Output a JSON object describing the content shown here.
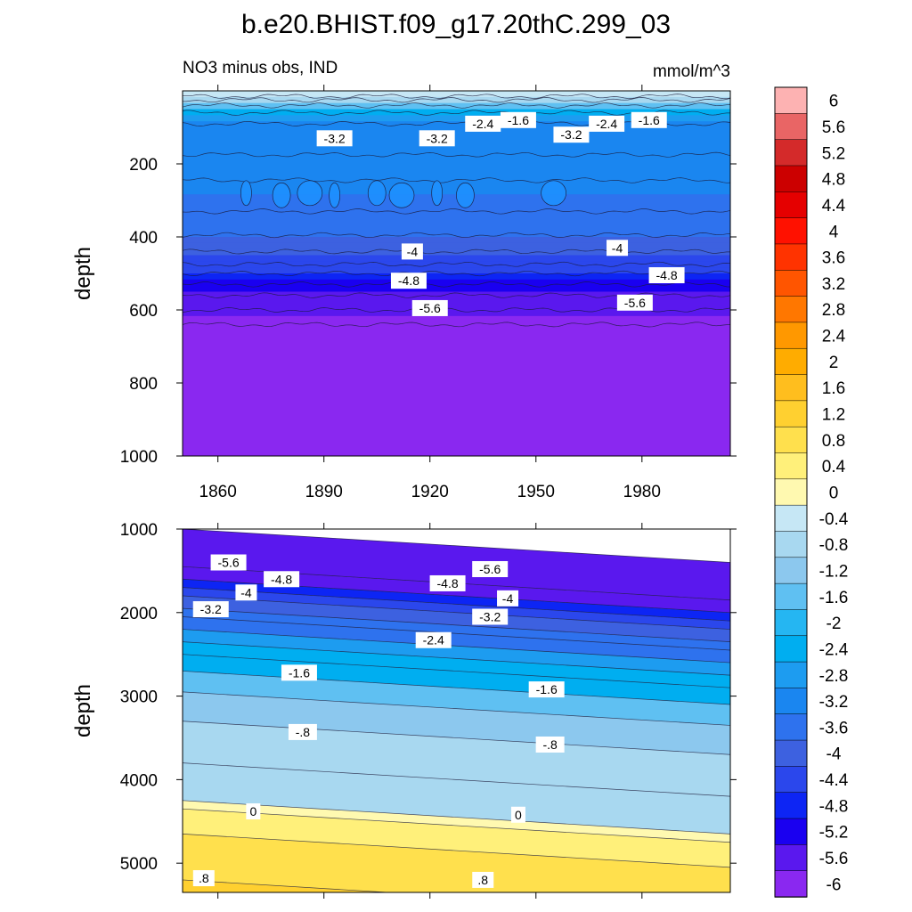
{
  "title": "b.e20.BHIST.f09_g17.20thC.299_03",
  "subtitle_left": "NO3 minus obs, IND",
  "subtitle_right": "mmol/m^3",
  "colorbar": {
    "levels": [
      "6",
      "5.6",
      "5.2",
      "4.8",
      "4.4",
      "4",
      "3.6",
      "3.2",
      "2.8",
      "2.4",
      "2",
      "1.6",
      "1.2",
      "0.8",
      "0.4",
      "0",
      "-0.4",
      "-0.8",
      "-1.2",
      "-1.6",
      "-2",
      "-2.4",
      "-2.8",
      "-3.2",
      "-3.6",
      "-4",
      "-4.4",
      "-4.8",
      "-5.2",
      "-5.6",
      "-6"
    ],
    "colors": [
      "#fdb2b2",
      "#e96565",
      "#d42a2a",
      "#cc0000",
      "#e50000",
      "#ff1100",
      "#ff3300",
      "#ff5500",
      "#ff7700",
      "#ff9800",
      "#ffac00",
      "#ffbe1e",
      "#ffd030",
      "#ffe04d",
      "#fff07a",
      "#fff9b0",
      "#c6e7f5",
      "#a8d8f0",
      "#8cc8ee",
      "#5fc0f2",
      "#25b6f2",
      "#00aef0",
      "#1d9cf0",
      "#1a86f0",
      "#2e72ee",
      "#3d61e0",
      "#2b47ec",
      "#0d25f4",
      "#1a00f0",
      "#5a18ee",
      "#8a28f0"
    ]
  },
  "chart_data": [
    {
      "type": "heatmap",
      "subtype": "filled contour",
      "panel": "upper",
      "xlabel": "",
      "ylabel": "depth",
      "x_ticks": [
        "1860",
        "1890",
        "1920",
        "1950",
        "1980"
      ],
      "x_range": [
        1850,
        2005
      ],
      "y_ticks": [
        "200",
        "400",
        "600",
        "800",
        "1000"
      ],
      "y_range": [
        1000,
        0
      ],
      "y_inverted": true,
      "levels_by_depth": [
        {
          "depth": 5,
          "value": -0.4
        },
        {
          "depth": 25,
          "value": -0.8
        },
        {
          "depth": 40,
          "value": -1.6
        },
        {
          "depth": 60,
          "value": -2.4
        },
        {
          "depth": 90,
          "value": -3.2
        },
        {
          "depth": 200,
          "value": -3.2
        },
        {
          "depth": 280,
          "value": -3.4
        },
        {
          "depth": 360,
          "value": -3.6
        },
        {
          "depth": 430,
          "value": -4.0
        },
        {
          "depth": 480,
          "value": -4.4
        },
        {
          "depth": 530,
          "value": -5.2
        },
        {
          "depth": 580,
          "value": -5.6
        },
        {
          "depth": 640,
          "value": -6.0
        },
        {
          "depth": 1000,
          "value": -6.0
        }
      ],
      "contour_labels": [
        {
          "text": "-3.2",
          "x": 1893,
          "y": 130
        },
        {
          "text": "-3.2",
          "x": 1922,
          "y": 130
        },
        {
          "text": "-2.4",
          "x": 1935,
          "y": 90
        },
        {
          "text": "-1.6",
          "x": 1945,
          "y": 80
        },
        {
          "text": "-3.2",
          "x": 1960,
          "y": 120
        },
        {
          "text": "-2.4",
          "x": 1970,
          "y": 90
        },
        {
          "text": "-1.6",
          "x": 1982,
          "y": 80
        },
        {
          "text": "-4",
          "x": 1915,
          "y": 440
        },
        {
          "text": "-4",
          "x": 1973,
          "y": 430
        },
        {
          "text": "-4.8",
          "x": 1914,
          "y": 520
        },
        {
          "text": "-4.8",
          "x": 1987,
          "y": 505
        },
        {
          "text": "-5.6",
          "x": 1920,
          "y": 595
        },
        {
          "text": "-5.6",
          "x": 1978,
          "y": 580
        }
      ]
    },
    {
      "type": "heatmap",
      "subtype": "filled contour",
      "panel": "lower",
      "xlabel": "",
      "ylabel": "depth",
      "x_range": [
        1850,
        2005
      ],
      "y_ticks": [
        "1000",
        "2000",
        "3000",
        "4000",
        "5000"
      ],
      "y_range": [
        5350,
        1000
      ],
      "y_inverted": true,
      "contour_labels": [
        {
          "text": "-5.6",
          "x": 1863,
          "y": 1400
        },
        {
          "text": "-4.8",
          "x": 1878,
          "y": 1600
        },
        {
          "text": "-4",
          "x": 1868,
          "y": 1760
        },
        {
          "text": "-3.2",
          "x": 1858,
          "y": 1960
        },
        {
          "text": "-5.6",
          "x": 1937,
          "y": 1480
        },
        {
          "text": "-4.8",
          "x": 1925,
          "y": 1650
        },
        {
          "text": "-4",
          "x": 1942,
          "y": 1830
        },
        {
          "text": "-3.2",
          "x": 1937,
          "y": 2050
        },
        {
          "text": "-2.4",
          "x": 1921,
          "y": 2330
        },
        {
          "text": "-1.6",
          "x": 1883,
          "y": 2720
        },
        {
          "text": "-1.6",
          "x": 1953,
          "y": 2920
        },
        {
          "text": "-.8",
          "x": 1884,
          "y": 3430
        },
        {
          "text": "-.8",
          "x": 1954,
          "y": 3580
        },
        {
          "text": "0",
          "x": 1870,
          "y": 4380
        },
        {
          "text": "0",
          "x": 1945,
          "y": 4420
        },
        {
          "text": ".8",
          "x": 1856,
          "y": 5180
        },
        {
          "text": ".8",
          "x": 1935,
          "y": 5200
        }
      ]
    }
  ]
}
